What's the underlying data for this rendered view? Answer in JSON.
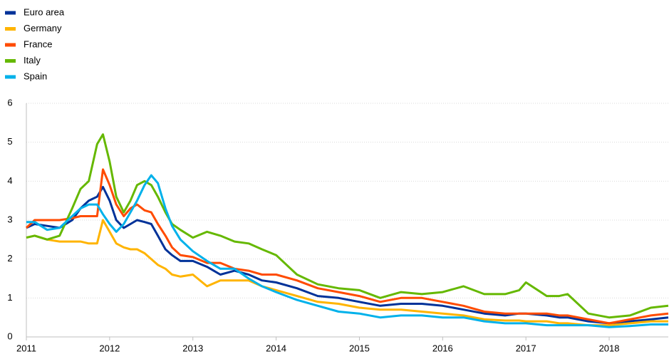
{
  "chart_data": {
    "type": "line",
    "x": [
      2011.0,
      2011.1,
      2011.25,
      2011.4,
      2011.55,
      2011.65,
      2011.75,
      2011.85,
      2011.92,
      2012.0,
      2012.08,
      2012.17,
      2012.25,
      2012.33,
      2012.42,
      2012.5,
      2012.58,
      2012.67,
      2012.75,
      2012.85,
      2013.0,
      2013.17,
      2013.33,
      2013.5,
      2013.67,
      2013.83,
      2014.0,
      2014.25,
      2014.5,
      2014.75,
      2015.0,
      2015.25,
      2015.5,
      2015.75,
      2016.0,
      2016.25,
      2016.5,
      2016.75,
      2016.92,
      2017.0,
      2017.25,
      2017.4,
      2017.5,
      2017.75,
      2018.0,
      2018.25,
      2018.5,
      2018.71
    ],
    "series": [
      {
        "name": "Euro area",
        "color": "#003299",
        "values": [
          2.8,
          2.9,
          2.85,
          2.8,
          3.0,
          3.3,
          3.5,
          3.6,
          3.85,
          3.5,
          3.0,
          2.8,
          2.9,
          3.0,
          2.95,
          2.9,
          2.6,
          2.25,
          2.1,
          1.95,
          1.95,
          1.8,
          1.6,
          1.7,
          1.6,
          1.45,
          1.4,
          1.25,
          1.05,
          1.0,
          0.9,
          0.8,
          0.85,
          0.85,
          0.8,
          0.7,
          0.6,
          0.55,
          0.6,
          0.6,
          0.55,
          0.5,
          0.5,
          0.4,
          0.35,
          0.4,
          0.45,
          0.5
        ]
      },
      {
        "name": "Germany",
        "color": "#ffb400",
        "values": [
          2.55,
          2.6,
          2.5,
          2.45,
          2.45,
          2.45,
          2.4,
          2.4,
          3.0,
          2.7,
          2.4,
          2.3,
          2.25,
          2.25,
          2.15,
          2.0,
          1.85,
          1.75,
          1.6,
          1.55,
          1.6,
          1.3,
          1.45,
          1.45,
          1.45,
          1.3,
          1.2,
          1.05,
          0.9,
          0.85,
          0.75,
          0.7,
          0.7,
          0.65,
          0.6,
          0.55,
          0.45,
          0.42,
          0.42,
          0.4,
          0.4,
          0.35,
          0.35,
          0.3,
          0.3,
          0.35,
          0.4,
          0.4
        ]
      },
      {
        "name": "France",
        "color": "#ff4b00",
        "values": [
          2.8,
          3.0,
          3.0,
          3.0,
          3.05,
          3.1,
          3.1,
          3.1,
          4.3,
          3.9,
          3.4,
          3.1,
          3.3,
          3.4,
          3.25,
          3.2,
          2.9,
          2.6,
          2.3,
          2.1,
          2.05,
          1.9,
          1.9,
          1.75,
          1.7,
          1.6,
          1.6,
          1.45,
          1.25,
          1.15,
          1.05,
          0.9,
          1.0,
          1.0,
          0.9,
          0.8,
          0.65,
          0.6,
          0.6,
          0.6,
          0.6,
          0.55,
          0.55,
          0.45,
          0.35,
          0.45,
          0.55,
          0.6
        ]
      },
      {
        "name": "Italy",
        "color": "#65b800",
        "values": [
          2.55,
          2.6,
          2.5,
          2.6,
          3.3,
          3.8,
          4.0,
          4.95,
          5.2,
          4.5,
          3.6,
          3.2,
          3.5,
          3.9,
          4.0,
          3.9,
          3.6,
          3.2,
          2.9,
          2.75,
          2.55,
          2.7,
          2.6,
          2.45,
          2.4,
          2.25,
          2.1,
          1.6,
          1.35,
          1.25,
          1.2,
          1.0,
          1.15,
          1.1,
          1.15,
          1.3,
          1.1,
          1.1,
          1.2,
          1.4,
          1.05,
          1.05,
          1.1,
          0.6,
          0.5,
          0.55,
          0.75,
          0.8
        ]
      },
      {
        "name": "Spain",
        "color": "#00b1ea",
        "values": [
          2.95,
          2.95,
          2.75,
          2.8,
          3.1,
          3.3,
          3.4,
          3.4,
          3.15,
          2.9,
          2.7,
          2.9,
          3.2,
          3.5,
          3.9,
          4.15,
          3.95,
          3.3,
          2.85,
          2.5,
          2.2,
          1.95,
          1.75,
          1.75,
          1.5,
          1.3,
          1.15,
          0.95,
          0.8,
          0.65,
          0.6,
          0.5,
          0.55,
          0.55,
          0.5,
          0.5,
          0.4,
          0.35,
          0.35,
          0.35,
          0.3,
          0.3,
          0.3,
          0.3,
          0.25,
          0.28,
          0.32,
          0.32
        ]
      }
    ],
    "xlim": [
      2011,
      2018.71
    ],
    "xticks": [
      2011,
      2012,
      2013,
      2014,
      2015,
      2016,
      2017,
      2018
    ],
    "ylim": [
      0,
      6
    ],
    "yticks": [
      0,
      1,
      2,
      3,
      4,
      5,
      6
    ],
    "grid": true,
    "legend": "top-left"
  }
}
